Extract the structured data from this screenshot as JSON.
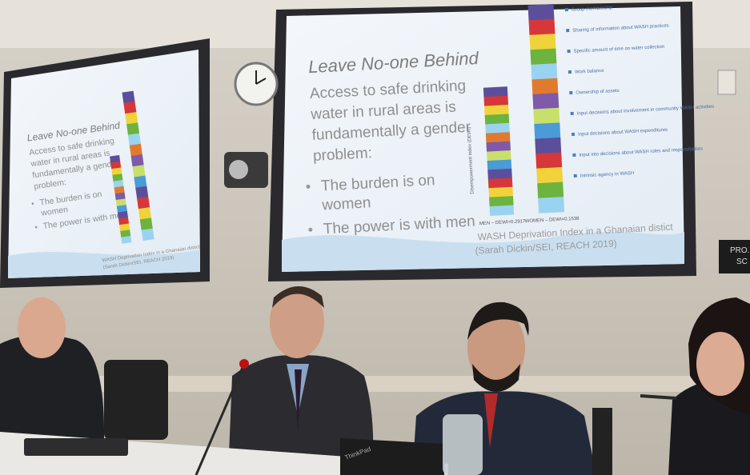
{
  "right_slide": {
    "title": "Leave No-one Behind",
    "intro_lines": [
      "Access to safe drinking",
      "water in rural areas is",
      "fundamentally a gender",
      "problem:"
    ],
    "bullets": [
      [
        "The burden is on",
        "women"
      ],
      [
        "The power is with men"
      ]
    ],
    "y_axis_label": "Disempowerment index (DEWI)",
    "bar_labels": [
      "MEN – DEWI=0.2917",
      "WOMEN – DEWI=0.1538"
    ],
    "legend": [
      "Group membership",
      "Sharing of information about WASH practices",
      "Specific amount of time on water collection",
      "Work balance",
      "Ownership of assets",
      "Input decisions about involvement in community WASH activities",
      "Input decisions about WASH expenditures",
      "Input into decisions about WASH roles and responsibilities",
      "Intrinsic agency in WASH"
    ],
    "caption_lines": [
      "WASH Deprivation Index in a Ghanaian distict",
      "(Sarah Dickin/SEI, REACH 2019)"
    ]
  },
  "left_slide": {
    "title": "Leave No-one Behind",
    "intro_lines": [
      "Access to safe drinking",
      "water in rural areas is",
      "fundamentally a gender",
      "problem:"
    ],
    "bullets": [
      [
        "The burden is on",
        "women"
      ],
      [
        "The power is with men"
      ]
    ],
    "caption_lines": [
      "WASH Deprivation Index in a Ghanaian distict",
      "(Sarah Dickin/SEI, REACH 2019)"
    ]
  },
  "sign": [
    "PRO.",
    "SC"
  ],
  "laptop_brand": "ThinkPad"
}
